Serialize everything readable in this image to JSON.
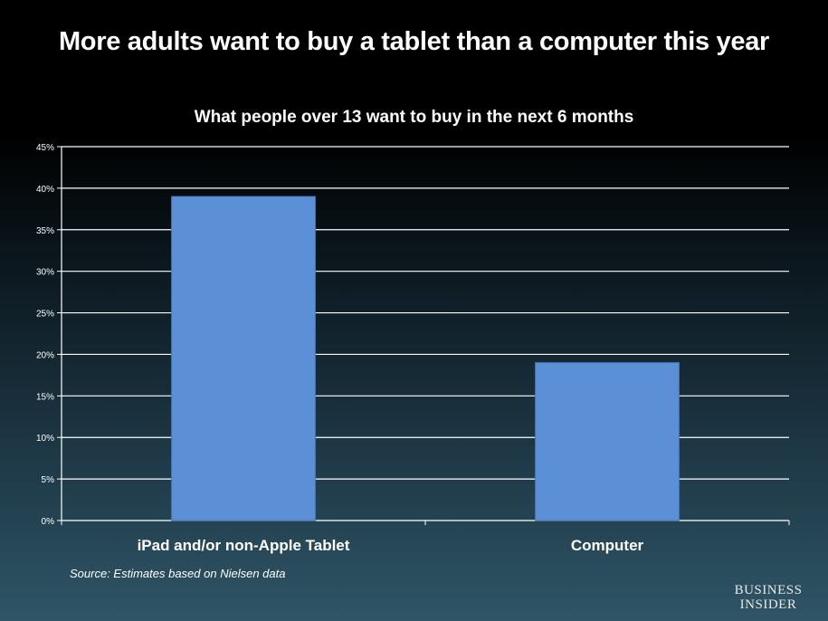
{
  "chart_data": {
    "type": "bar",
    "title": "More adults want to buy a tablet than a computer this year",
    "subtitle": "What people over 13 want to buy in the next 6 months",
    "categories": [
      "iPad and/or non-Apple Tablet",
      "Computer"
    ],
    "values": [
      39,
      19
    ],
    "ylim": [
      0,
      45
    ],
    "yticks": [
      "0%",
      "5%",
      "10%",
      "15%",
      "20%",
      "25%",
      "30%",
      "35%",
      "40%",
      "45%"
    ],
    "grid": true,
    "bar_color": "#5b8fd6"
  },
  "footer": {
    "source": "Source: Estimates based on Nielsen data",
    "logo": "Business Insider"
  }
}
